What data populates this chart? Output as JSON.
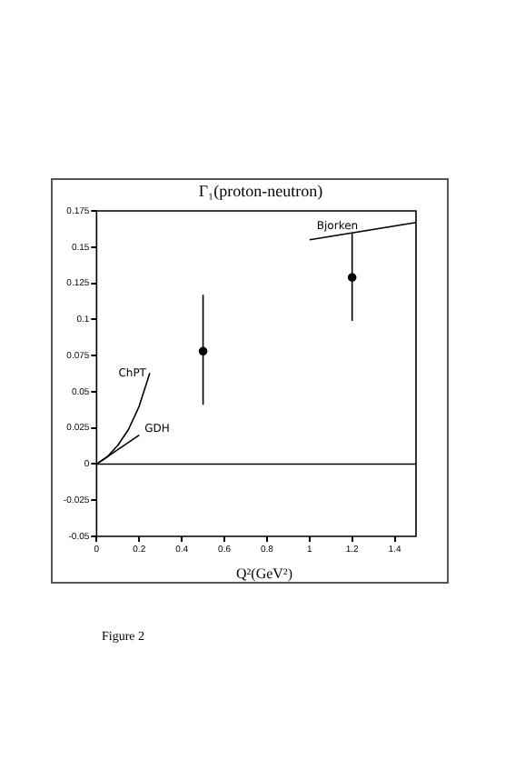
{
  "chart_data": {
    "type": "scatter",
    "title": "Γ₁(proton-neutron)",
    "xlabel": "Q²(GeV²)",
    "xlim": [
      0,
      1.5
    ],
    "xticks": [
      0,
      0.2,
      0.4,
      0.6,
      0.8,
      1,
      1.2,
      1.4
    ],
    "ylim": [
      -0.05,
      0.175
    ],
    "yticks": [
      -0.05,
      -0.025,
      0,
      0.025,
      0.05,
      0.075,
      0.1,
      0.125,
      0.15,
      0.175
    ],
    "series": [
      {
        "marker": "circle",
        "color": "#000000",
        "x": [
          0.5,
          1.2
        ],
        "values": [
          0.078,
          0.129
        ],
        "errors": [
          [
            0.041,
            0.117
          ],
          [
            0.099,
            0.16
          ]
        ]
      },
      {
        "type": "line",
        "name": "ChPT",
        "color": "#000000",
        "x": [
          0,
          0.05,
          0.1,
          0.15,
          0.2,
          0.25
        ],
        "values": [
          0,
          0.005,
          0.013,
          0.024,
          0.04,
          0.063
        ]
      },
      {
        "type": "line",
        "name": "GDH",
        "color": "#000000",
        "x": [
          0,
          0.2
        ],
        "values": [
          0,
          0.02
        ]
      },
      {
        "type": "line",
        "name": "Bjorken",
        "color": "#000000",
        "x": [
          1,
          1.5
        ],
        "values": [
          0.155,
          0.167
        ]
      }
    ],
    "ref_lines": [
      {
        "axis": "y",
        "value": 0,
        "color": "#000000"
      }
    ],
    "annotations": [
      "Figure 2"
    ]
  }
}
